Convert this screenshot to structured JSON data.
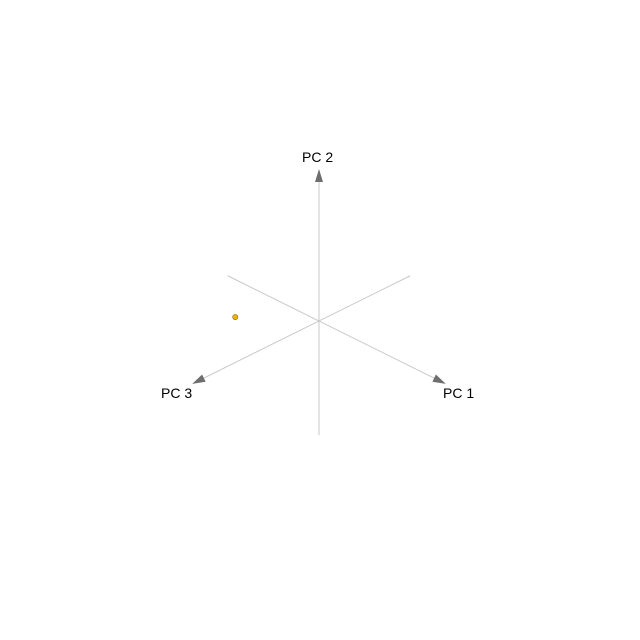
{
  "chart_data": {
    "type": "scatter",
    "title": "",
    "axes": [
      {
        "name": "PC 1"
      },
      {
        "name": "PC 2"
      },
      {
        "name": "PC 3"
      }
    ],
    "points": [
      {
        "x": -0.27,
        "y": 0.08,
        "z": 0.4
      }
    ],
    "grid": false,
    "legend": "none"
  },
  "colors": {
    "axis_line": "#c8c8c8",
    "arrow_head": "#6e6e6e",
    "point": "#f0b400",
    "point_edge": "#8a6a00",
    "background": "#ffffff"
  }
}
